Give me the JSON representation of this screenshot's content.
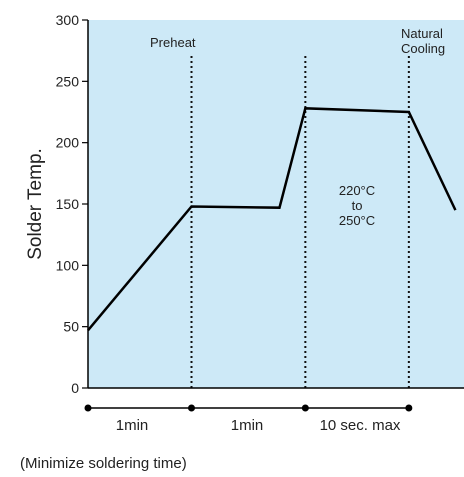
{
  "chart_data": {
    "type": "line",
    "title": "",
    "ylabel": "Solder Temp.",
    "xlabel": "",
    "ylim": [
      0,
      300
    ],
    "yticks": [
      0,
      50,
      100,
      150,
      200,
      250,
      300
    ],
    "grid": false,
    "background_color": "#cde9f7",
    "line_color": "#000000",
    "x_unit": "phase position",
    "series": [
      {
        "points": [
          {
            "x": 0.0,
            "y": 47
          },
          {
            "x": 1.0,
            "y": 148
          },
          {
            "x": 1.85,
            "y": 147
          },
          {
            "x": 2.1,
            "y": 228
          },
          {
            "x": 3.1,
            "y": 225
          },
          {
            "x": 3.55,
            "y": 145
          }
        ]
      }
    ],
    "dividers": [
      1.0,
      2.1,
      3.1
    ],
    "annotations": {
      "preheat": "Preheat",
      "natural_cooling_1": "Natural",
      "natural_cooling_2": "Cooling",
      "peak_1": "220°C",
      "peak_2": "to",
      "peak_3": "250°C"
    },
    "time_segments": [
      "1min",
      "1min",
      "10 sec. max"
    ],
    "note": "(Minimize soldering time)"
  }
}
